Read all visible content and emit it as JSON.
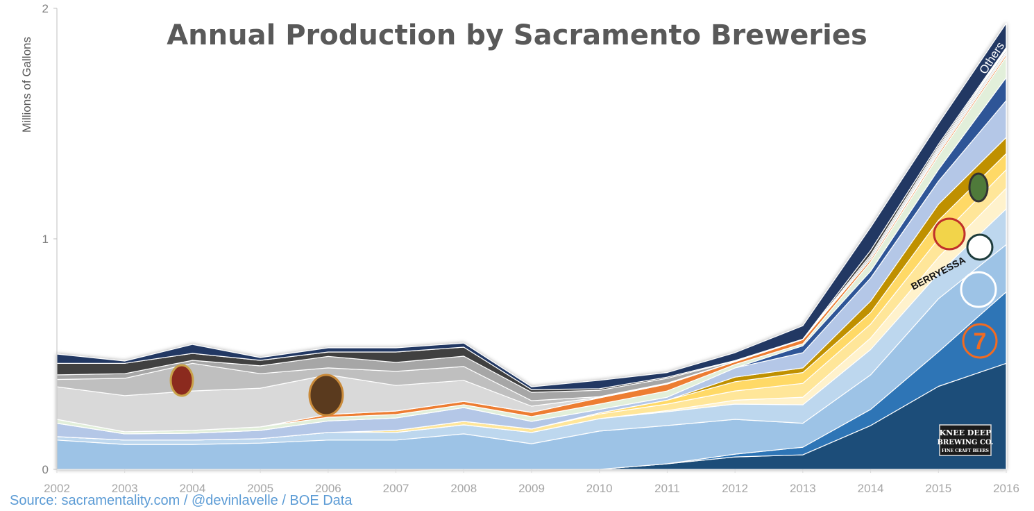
{
  "chart_data": {
    "type": "area",
    "stacked": true,
    "title": "Annual Production by Sacramento Breweries",
    "xlabel": "",
    "ylabel": "Millions of Gallons",
    "ylim": [
      0,
      2
    ],
    "yticks": [
      "0",
      "1",
      "2"
    ],
    "grid": false,
    "legend": "none",
    "x": [
      "2002",
      "2003",
      "2004",
      "2005",
      "2006",
      "2007",
      "2008",
      "2009",
      "2010",
      "2011",
      "2012",
      "2013",
      "2014",
      "2015",
      "2016"
    ],
    "series": [
      {
        "color": "#1f4e79",
        "values": [
          0,
          0,
          0,
          0,
          0,
          0,
          0,
          0,
          0,
          0.024,
          0.054,
          0.063,
          0.19,
          0.36,
          0.46
        ]
      },
      {
        "color": "#2e75b6",
        "values": [
          0,
          0,
          0,
          0,
          0,
          0,
          0,
          0,
          0,
          0,
          0.012,
          0.033,
          0.07,
          0.15,
          0.31
        ]
      },
      {
        "color": "#9dc3e6",
        "values": [
          0.127,
          0.108,
          0.108,
          0.114,
          0.127,
          0.127,
          0.154,
          0.111,
          0.166,
          0.166,
          0.151,
          0.104,
          0.15,
          0.23,
          0.205
        ]
      },
      {
        "color": "#bdd7ee",
        "values": [
          0.015,
          0.019,
          0.019,
          0.019,
          0.033,
          0.033,
          0.039,
          0.049,
          0.054,
          0.06,
          0.066,
          0.08,
          0.11,
          0.11,
          0.155
        ]
      },
      {
        "color": "#fff2cc",
        "values": [
          0,
          0,
          0,
          0,
          0,
          0,
          0,
          0,
          0,
          0.005,
          0.017,
          0.033,
          0.05,
          0.07,
          0.09
        ]
      },
      {
        "color": "#ffe699",
        "values": [
          0,
          0,
          0,
          0,
          0,
          0.009,
          0.015,
          0.015,
          0.02,
          0.028,
          0.04,
          0.06,
          0.06,
          0.08,
          0.08
        ]
      },
      {
        "color": "#ffd966",
        "values": [
          0,
          0,
          0,
          0,
          0,
          0,
          0,
          0,
          0.005,
          0.017,
          0.04,
          0.047,
          0.05,
          0.08,
          0.07
        ]
      },
      {
        "color": "#bf9000",
        "values": [
          0,
          0,
          0,
          0,
          0,
          0,
          0,
          0,
          0,
          0,
          0.02,
          0.02,
          0.05,
          0.07,
          0.07
        ]
      },
      {
        "color": "#b4c7e7",
        "values": [
          0.058,
          0.027,
          0.03,
          0.036,
          0.05,
          0.054,
          0.06,
          0.033,
          0.015,
          0.013,
          0.04,
          0.066,
          0.1,
          0.1,
          0.16
        ]
      },
      {
        "color": "#2f5597",
        "values": [
          0,
          0,
          0,
          0,
          0,
          0,
          0,
          0,
          0,
          0,
          0,
          0.03,
          0.03,
          0.05,
          0.1
        ]
      },
      {
        "color": "#e2efda",
        "values": [
          0.017,
          0.009,
          0.012,
          0.015,
          0.016,
          0.015,
          0.012,
          0.021,
          0.023,
          0.027,
          0.015,
          0.009,
          0.04,
          0.06,
          0.09
        ]
      },
      {
        "color": "#ed7d31",
        "values": [
          0,
          0,
          0,
          0,
          0.012,
          0.015,
          0.015,
          0.018,
          0.027,
          0.03,
          0.012,
          0.018,
          0.01,
          0.01,
          0.01
        ]
      },
      {
        "color": "#d9d9d9",
        "values": [
          0.141,
          0.157,
          0.171,
          0.168,
          0.172,
          0.111,
          0.091,
          0.027,
          0.002,
          0.002,
          0,
          0,
          0,
          0.01,
          0.01
        ]
      },
      {
        "color": "#bfbfbf",
        "values": [
          0.032,
          0.075,
          0.12,
          0.063,
          0.03,
          0.061,
          0.06,
          0.024,
          0.003,
          0.002,
          0,
          0,
          0.01,
          0.01,
          0.01
        ]
      },
      {
        "color": "#a6a6a6",
        "values": [
          0.02,
          0.02,
          0.013,
          0.034,
          0.05,
          0.039,
          0.045,
          0.036,
          0.028,
          0.021,
          0.003,
          0.002,
          0.01,
          0.01,
          0.005
        ]
      },
      {
        "color": "#404040",
        "values": [
          0.05,
          0.045,
          0.03,
          0.024,
          0.019,
          0.045,
          0.039,
          0.012,
          0.007,
          0.005,
          0.002,
          0,
          0.02,
          0.01,
          0.005
        ]
      },
      {
        "name": "Others",
        "color": "#203864",
        "values": [
          0.04,
          0.01,
          0.039,
          0.012,
          0.018,
          0.018,
          0.018,
          0.012,
          0.036,
          0.02,
          0.034,
          0.058,
          0.1,
          0.09,
          0.105
        ]
      }
    ],
    "annotations": {
      "others_label": "Others"
    },
    "logos": [
      "Beermann's",
      "Sac Brew",
      "Berryessa Brewing Co.",
      "Auburn Alehouse",
      "Loomis Basin (LB)",
      "Sudwerk Brewing Company",
      "Bike Dog / River City",
      "Track 7",
      "Knee Deep Brewing Co. Fine Craft Beers"
    ]
  },
  "source": "Source: sacramentality.com / @devinlavelle / BOE Data"
}
